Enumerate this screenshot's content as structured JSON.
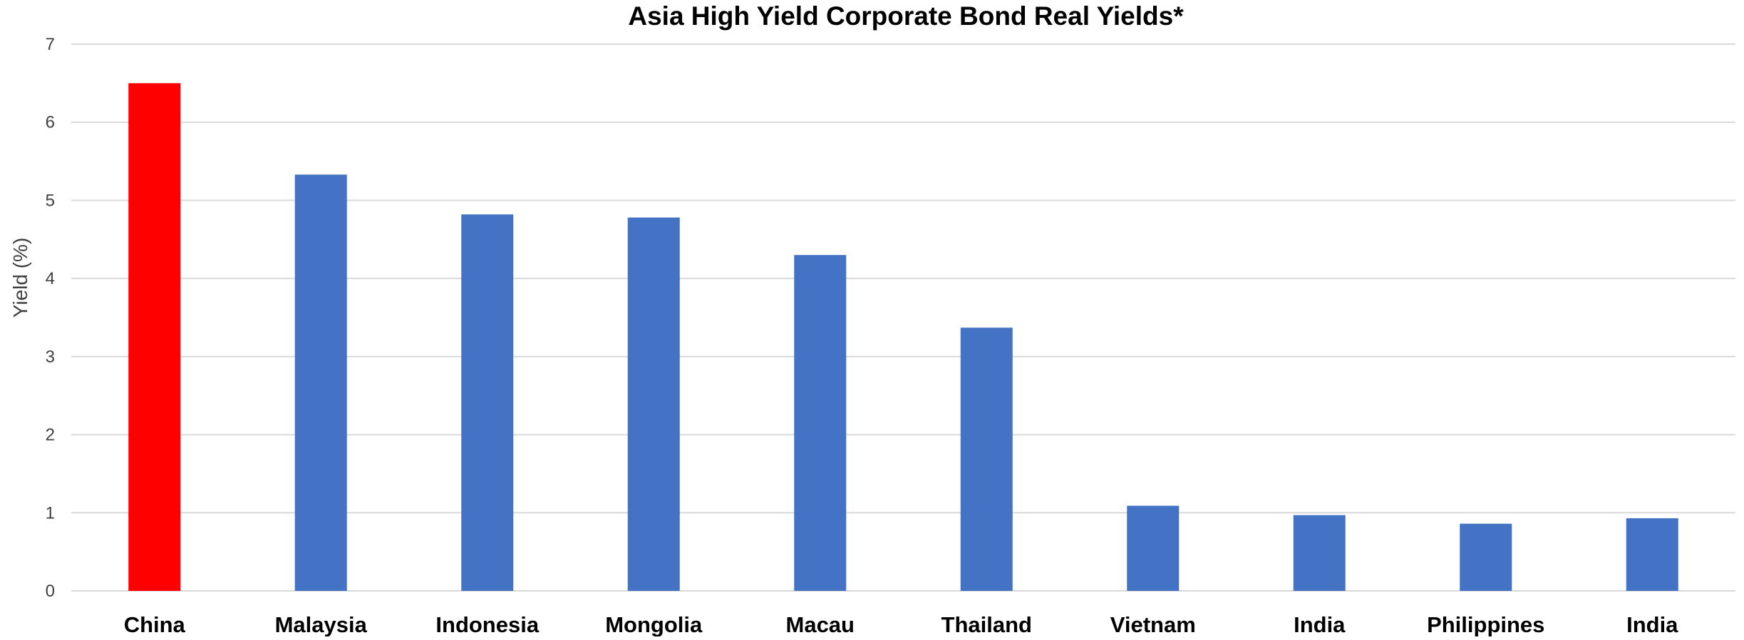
{
  "chart_data": {
    "type": "bar",
    "title": "Asia High Yield Corporate Bond Real Yields*",
    "xlabel": "",
    "ylabel": "Yield (%)",
    "ylim": [
      0,
      7
    ],
    "yticks": [
      "0",
      "1",
      "2",
      "3",
      "4",
      "5",
      "6",
      "7"
    ],
    "grid": true,
    "categories": [
      "China",
      "Malaysia",
      "Indonesia",
      "Mongolia",
      "Macau",
      "Thailand",
      "Vietnam",
      "India",
      "Philippines",
      "India"
    ],
    "values": [
      6.5,
      5.33,
      4.82,
      4.78,
      4.3,
      3.37,
      1.09,
      0.97,
      0.86,
      0.93
    ],
    "colors": [
      "#ff0000",
      "#4472c4",
      "#4472c4",
      "#4472c4",
      "#4472c4",
      "#4472c4",
      "#4472c4",
      "#4472c4",
      "#4472c4",
      "#4472c4"
    ]
  }
}
